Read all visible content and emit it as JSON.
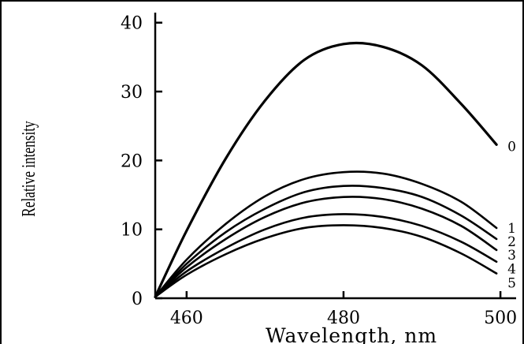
{
  "chart_data": {
    "type": "line",
    "title": "",
    "xlabel": "Wavelength, nm",
    "ylabel": "Relative intensity",
    "xlim": [
      456,
      502
    ],
    "ylim": [
      0,
      41
    ],
    "xticks": [
      460,
      480,
      500
    ],
    "yticks": [
      0,
      10,
      20,
      30,
      40
    ],
    "grid": false,
    "legend": "none",
    "x": [
      456,
      460,
      465,
      470,
      475,
      480,
      485,
      490,
      495,
      499.5
    ],
    "series": [
      {
        "name": "0",
        "values": [
          0.2,
          9.8,
          20.3,
          28.7,
          34.6,
          36.9,
          36.5,
          33.8,
          28.2,
          22.3
        ]
      },
      {
        "name": "1",
        "values": [
          0.2,
          5.6,
          10.8,
          14.8,
          17.3,
          18.3,
          18.1,
          16.6,
          14.0,
          10.2
        ]
      },
      {
        "name": "2",
        "values": [
          0.2,
          5.0,
          9.6,
          13.0,
          15.4,
          16.3,
          16.0,
          14.7,
          12.0,
          8.6
        ]
      },
      {
        "name": "3",
        "values": [
          0.2,
          4.5,
          8.6,
          11.8,
          13.9,
          14.7,
          14.4,
          13.0,
          10.5,
          7.0
        ]
      },
      {
        "name": "4",
        "values": [
          0.2,
          3.9,
          7.3,
          10.0,
          11.7,
          12.2,
          11.8,
          10.5,
          8.2,
          5.3
        ]
      },
      {
        "name": "5",
        "values": [
          0.2,
          3.4,
          6.4,
          8.7,
          10.2,
          10.6,
          10.2,
          8.9,
          6.5,
          3.6
        ]
      }
    ]
  }
}
